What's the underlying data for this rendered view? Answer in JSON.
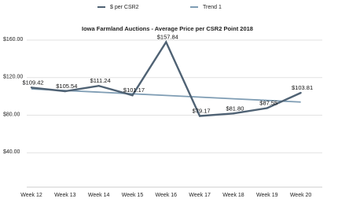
{
  "chart_data": {
    "type": "line",
    "title": "Iowa Farmland Auctions - Average Price per CSR2 Point 2018",
    "categories": [
      "Week 12",
      "Week 13",
      "Week 14",
      "Week 15",
      "Week 16",
      "Week 17",
      "Week 18",
      "Week 19",
      "Week 20"
    ],
    "series": [
      {
        "name": "$ per CSR2",
        "color": "#4f6274",
        "values": [
          109.42,
          105.54,
          111.24,
          101.17,
          157.84,
          79.17,
          81.8,
          87.55,
          103.81
        ],
        "value_labels": [
          "$109.42",
          "$105.54",
          "$111.24",
          "$101.17",
          "$157.84",
          "$79.17",
          "$81.80",
          "$87.55",
          "$103.81"
        ]
      },
      {
        "name": "Trend 1",
        "color": "#7f9db4",
        "values": [
          108,
          106.25,
          104.5,
          102.75,
          101,
          99.25,
          97.5,
          95.75,
          94
        ]
      }
    ],
    "ylim": [
      0,
      165
    ],
    "yticks": [
      {
        "value": 40,
        "label": "$40.00"
      },
      {
        "value": 80,
        "label": "$80.00"
      },
      {
        "value": 120,
        "label": "$120.00"
      },
      {
        "value": 160,
        "label": "$160.00"
      }
    ],
    "grid": true,
    "legend": "top"
  }
}
